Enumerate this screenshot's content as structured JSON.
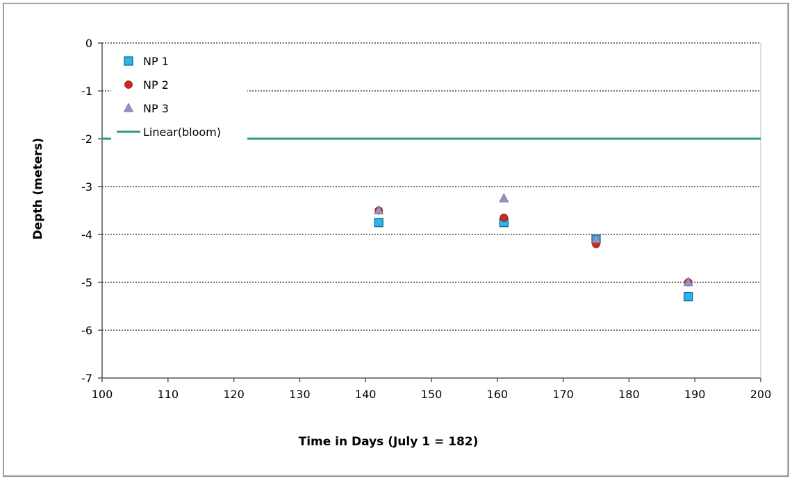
{
  "chart_data": {
    "type": "scatter",
    "xlabel": "Time in Days (July 1 = 182)",
    "ylabel": "Depth (meters)",
    "xlim": [
      100,
      200
    ],
    "ylim": [
      -7,
      0
    ],
    "x_ticks": [
      100,
      110,
      120,
      130,
      140,
      150,
      160,
      170,
      180,
      190,
      200
    ],
    "y_ticks": [
      0,
      -1,
      -2,
      -3,
      -4,
      -5,
      -6,
      -7
    ],
    "grid": "horizontal dotted",
    "legend_position": "top-left",
    "colors": {
      "np1": "#29b6e8",
      "np2": "#cc2a1e",
      "np3": "#9c8fbf",
      "bloom": "#2e9e6e",
      "frame": "#7f7f7f"
    },
    "series": [
      {
        "key": "np1",
        "name": "NP 1",
        "marker": "square",
        "x": [
          142,
          161,
          175,
          189
        ],
        "y": [
          -3.75,
          -3.75,
          -4.1,
          -5.3
        ]
      },
      {
        "key": "np2",
        "name": "NP 2",
        "marker": "circle",
        "x": [
          142,
          161,
          175,
          189
        ],
        "y": [
          -3.5,
          -3.65,
          -4.2,
          -5.0
        ]
      },
      {
        "key": "np3",
        "name": "NP 3",
        "marker": "triangle",
        "x": [
          142,
          161,
          175,
          189
        ],
        "y": [
          -3.5,
          -3.25,
          -4.1,
          -5.0
        ]
      },
      {
        "key": "bloom",
        "name": "Linear(bloom)",
        "marker": "line",
        "x": [
          100,
          200
        ],
        "y": [
          -2,
          -2
        ]
      }
    ]
  }
}
